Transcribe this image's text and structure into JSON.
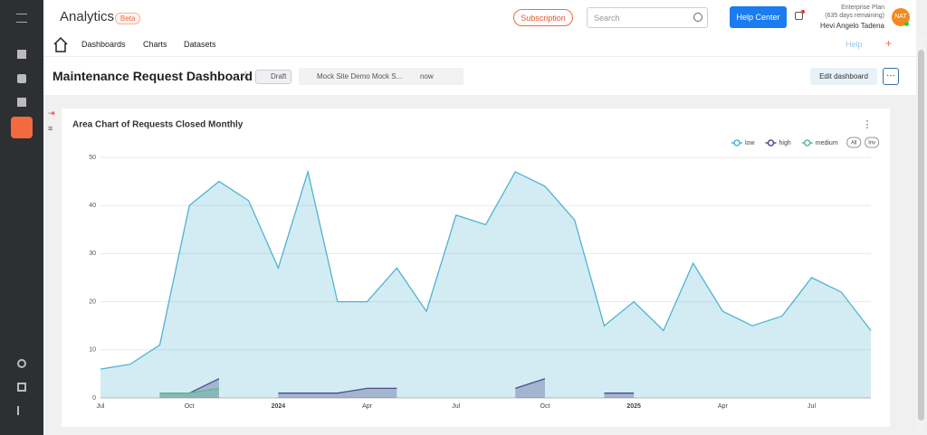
{
  "header": {
    "app_name": "Analytics",
    "badge": "Beta",
    "subscription": "Subscription",
    "search_placeholder": "Search",
    "help_center": "Help Center",
    "plan": "Enterprise Plan",
    "plan_remaining": "(635 days remaining)",
    "user_name": "Hevi Angelo Tadena",
    "avatar": "NAT"
  },
  "nav": {
    "items": [
      "Dashboards",
      "Charts",
      "Datasets"
    ],
    "help": "Help"
  },
  "dashboard": {
    "title": "Maintenance Request Dashboard",
    "status": "Draft",
    "owner": "Mock Site Demo Mock S...",
    "modified": "now",
    "edit_button": "Edit dashboard"
  },
  "chart_data": {
    "type": "area",
    "title": "Area Chart of Requests Closed Monthly",
    "categories": [
      "Jul",
      null,
      null,
      "Oct",
      null,
      null,
      "2024",
      null,
      null,
      "Apr",
      null,
      null,
      "Jul",
      null,
      null,
      "Oct",
      null,
      null,
      "2025",
      null,
      null,
      "Apr",
      null,
      null,
      "Jul",
      null,
      null
    ],
    "series": [
      {
        "name": "low",
        "color": "#4fb3d4",
        "values": [
          6,
          7,
          11,
          40,
          45,
          41,
          27,
          47,
          20,
          20,
          27,
          18,
          38,
          36,
          47,
          44,
          37,
          15,
          20,
          14,
          28,
          18,
          15,
          17,
          25,
          22,
          14
        ]
      },
      {
        "name": "high",
        "color": "#4b4f8a",
        "values": [
          null,
          null,
          1,
          1,
          4,
          null,
          1,
          1,
          1,
          2,
          2,
          null,
          null,
          null,
          2,
          4,
          null,
          1,
          1,
          null,
          null,
          null,
          null,
          null,
          null,
          null,
          null
        ]
      },
      {
        "name": "medium",
        "color": "#5cba8f",
        "values": [
          null,
          null,
          1,
          1,
          2,
          null,
          null,
          null,
          null,
          null,
          null,
          null,
          null,
          null,
          null,
          null,
          null,
          null,
          null,
          null,
          null,
          null,
          null,
          null,
          null,
          null,
          null
        ]
      }
    ],
    "legend_buttons": [
      "All",
      "Inv"
    ],
    "ylim": [
      0,
      50
    ],
    "yticks": [
      0,
      10,
      20,
      30,
      40,
      50
    ],
    "grid": true
  }
}
